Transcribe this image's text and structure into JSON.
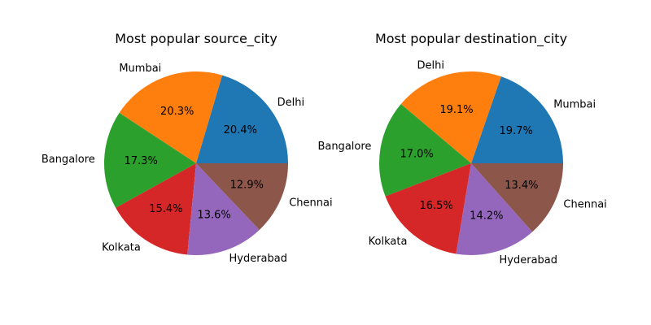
{
  "chart_data": [
    {
      "type": "pie",
      "title": "Most popular source_city",
      "categories": [
        "Delhi",
        "Mumbai",
        "Bangalore",
        "Kolkata",
        "Hyderabad",
        "Chennai"
      ],
      "values": [
        20.4,
        20.3,
        17.3,
        15.4,
        13.6,
        12.9
      ],
      "percent_labels": [
        "20.4%",
        "20.3%",
        "17.3%",
        "15.4%",
        "13.6%",
        "12.9%"
      ],
      "colors": [
        "#1f77b4",
        "#ff7f0e",
        "#2ca02c",
        "#d62728",
        "#9467bd",
        "#8c564b"
      ]
    },
    {
      "type": "pie",
      "title": "Most popular destination_city",
      "categories": [
        "Mumbai",
        "Delhi",
        "Bangalore",
        "Kolkata",
        "Hyderabad",
        "Chennai"
      ],
      "values": [
        19.7,
        19.1,
        17.0,
        16.5,
        14.2,
        13.4
      ],
      "percent_labels": [
        "19.7%",
        "19.1%",
        "17.0%",
        "16.5%",
        "14.2%",
        "13.4%"
      ],
      "colors": [
        "#1f77b4",
        "#ff7f0e",
        "#2ca02c",
        "#d62728",
        "#9467bd",
        "#8c564b"
      ]
    }
  ]
}
